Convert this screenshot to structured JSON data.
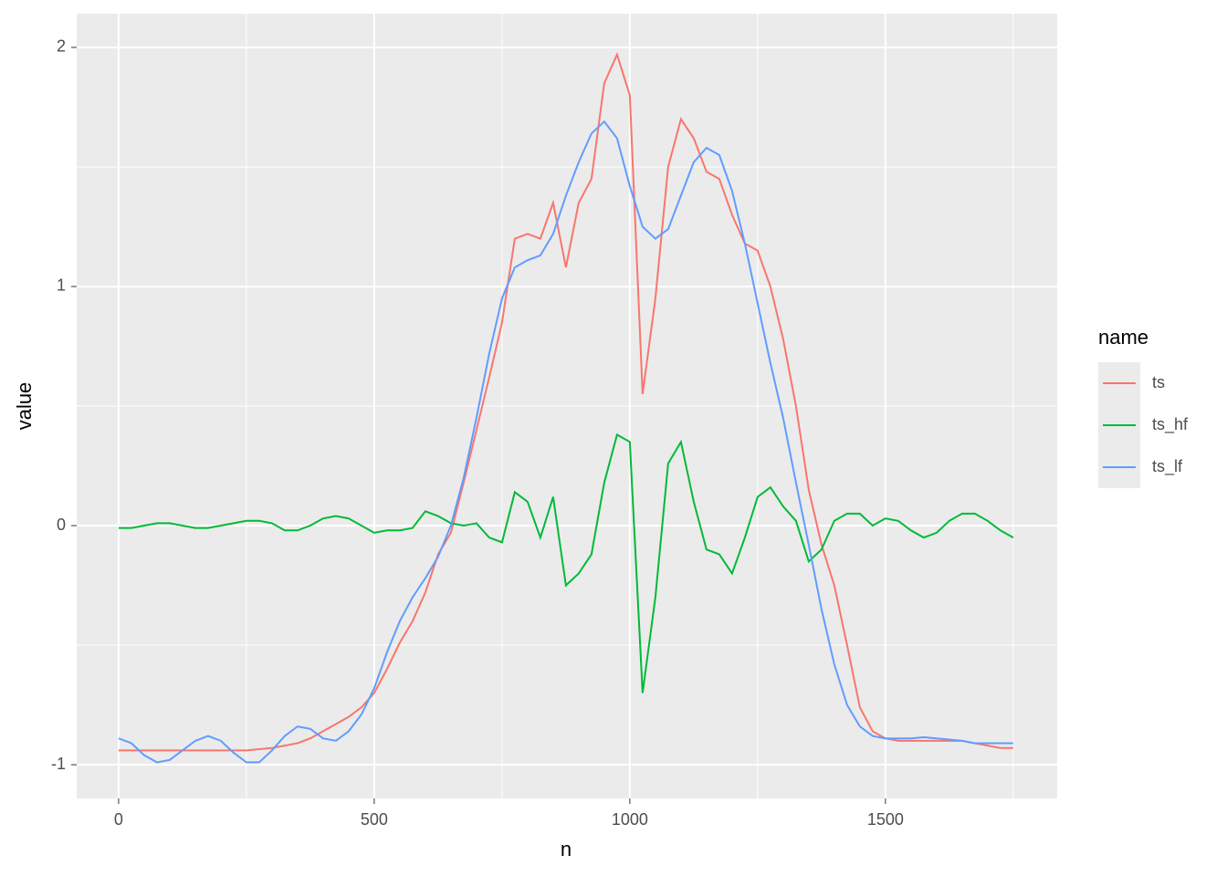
{
  "chart_data": {
    "type": "line",
    "x_label": "n",
    "y_label": "value",
    "legend_title": "name",
    "legend_position": "right",
    "grid": true,
    "xlim": [
      -82,
      1836
    ],
    "ylim": [
      -1.141,
      2.141
    ],
    "xticks": [
      0,
      500,
      1000,
      1500
    ],
    "yticks": [
      -1,
      0,
      1,
      2
    ],
    "minor_xticks": [
      250,
      750,
      1250,
      1750
    ],
    "minor_yticks": [
      -0.5,
      0.5,
      1.5
    ],
    "x": [
      0,
      25,
      50,
      75,
      100,
      125,
      150,
      175,
      200,
      225,
      250,
      275,
      300,
      325,
      350,
      375,
      400,
      425,
      450,
      475,
      500,
      525,
      550,
      575,
      600,
      625,
      650,
      675,
      700,
      725,
      750,
      775,
      800,
      825,
      850,
      875,
      900,
      925,
      950,
      975,
      1000,
      1025,
      1050,
      1075,
      1100,
      1125,
      1150,
      1175,
      1200,
      1225,
      1250,
      1275,
      1300,
      1325,
      1350,
      1375,
      1400,
      1425,
      1450,
      1475,
      1500,
      1525,
      1550,
      1575,
      1600,
      1625,
      1650,
      1675,
      1700,
      1725,
      1750
    ],
    "series": [
      {
        "name": "ts",
        "color": "#F8766D",
        "values": [
          -0.94,
          -0.94,
          -0.94,
          -0.94,
          -0.94,
          -0.94,
          -0.94,
          -0.94,
          -0.94,
          -0.94,
          -0.94,
          -0.935,
          -0.93,
          -0.92,
          -0.91,
          -0.89,
          -0.86,
          -0.83,
          -0.8,
          -0.76,
          -0.7,
          -0.6,
          -0.49,
          -0.4,
          -0.28,
          -0.12,
          -0.03,
          0.18,
          0.4,
          0.62,
          0.85,
          1.2,
          1.22,
          1.2,
          1.35,
          1.08,
          1.35,
          1.45,
          1.85,
          1.97,
          1.8,
          0.55,
          0.95,
          1.5,
          1.7,
          1.62,
          1.48,
          1.45,
          1.3,
          1.18,
          1.15,
          1.0,
          0.78,
          0.5,
          0.15,
          -0.08,
          -0.25,
          -0.5,
          -0.76,
          -0.86,
          -0.89,
          -0.9,
          -0.9,
          -0.9,
          -0.9,
          -0.9,
          -0.9,
          -0.91,
          -0.92,
          -0.93,
          -0.93
        ]
      },
      {
        "name": "ts_hf",
        "color": "#00BA38",
        "values": [
          -0.01,
          -0.01,
          0.0,
          0.01,
          0.01,
          0.0,
          -0.01,
          -0.01,
          0.0,
          0.01,
          0.02,
          0.02,
          0.01,
          -0.02,
          -0.02,
          0.0,
          0.03,
          0.04,
          0.03,
          0.0,
          -0.03,
          -0.02,
          -0.02,
          -0.01,
          0.06,
          0.04,
          0.01,
          0.0,
          0.01,
          -0.05,
          -0.07,
          0.14,
          0.1,
          -0.05,
          0.12,
          -0.25,
          -0.2,
          -0.12,
          0.18,
          0.38,
          0.35,
          -0.7,
          -0.3,
          0.26,
          0.35,
          0.1,
          -0.1,
          -0.12,
          -0.2,
          -0.05,
          0.12,
          0.16,
          0.08,
          0.02,
          -0.15,
          -0.1,
          0.02,
          0.05,
          0.05,
          0.0,
          0.03,
          0.02,
          -0.02,
          -0.05,
          -0.03,
          0.02,
          0.05,
          0.05,
          0.02,
          -0.02,
          -0.05
        ]
      },
      {
        "name": "ts_lf",
        "color": "#619CFF",
        "values": [
          -0.89,
          -0.91,
          -0.96,
          -0.99,
          -0.98,
          -0.94,
          -0.9,
          -0.88,
          -0.9,
          -0.95,
          -0.99,
          -0.99,
          -0.94,
          -0.88,
          -0.84,
          -0.85,
          -0.89,
          -0.9,
          -0.86,
          -0.79,
          -0.68,
          -0.53,
          -0.4,
          -0.3,
          -0.22,
          -0.13,
          0.0,
          0.2,
          0.45,
          0.72,
          0.95,
          1.08,
          1.11,
          1.13,
          1.22,
          1.38,
          1.52,
          1.64,
          1.69,
          1.62,
          1.42,
          1.25,
          1.2,
          1.24,
          1.38,
          1.52,
          1.58,
          1.55,
          1.4,
          1.18,
          0.93,
          0.68,
          0.45,
          0.18,
          -0.08,
          -0.35,
          -0.58,
          -0.75,
          -0.84,
          -0.88,
          -0.89,
          -0.89,
          -0.89,
          -0.885,
          -0.89,
          -0.895,
          -0.9,
          -0.91,
          -0.91,
          -0.91,
          -0.91
        ]
      }
    ]
  }
}
